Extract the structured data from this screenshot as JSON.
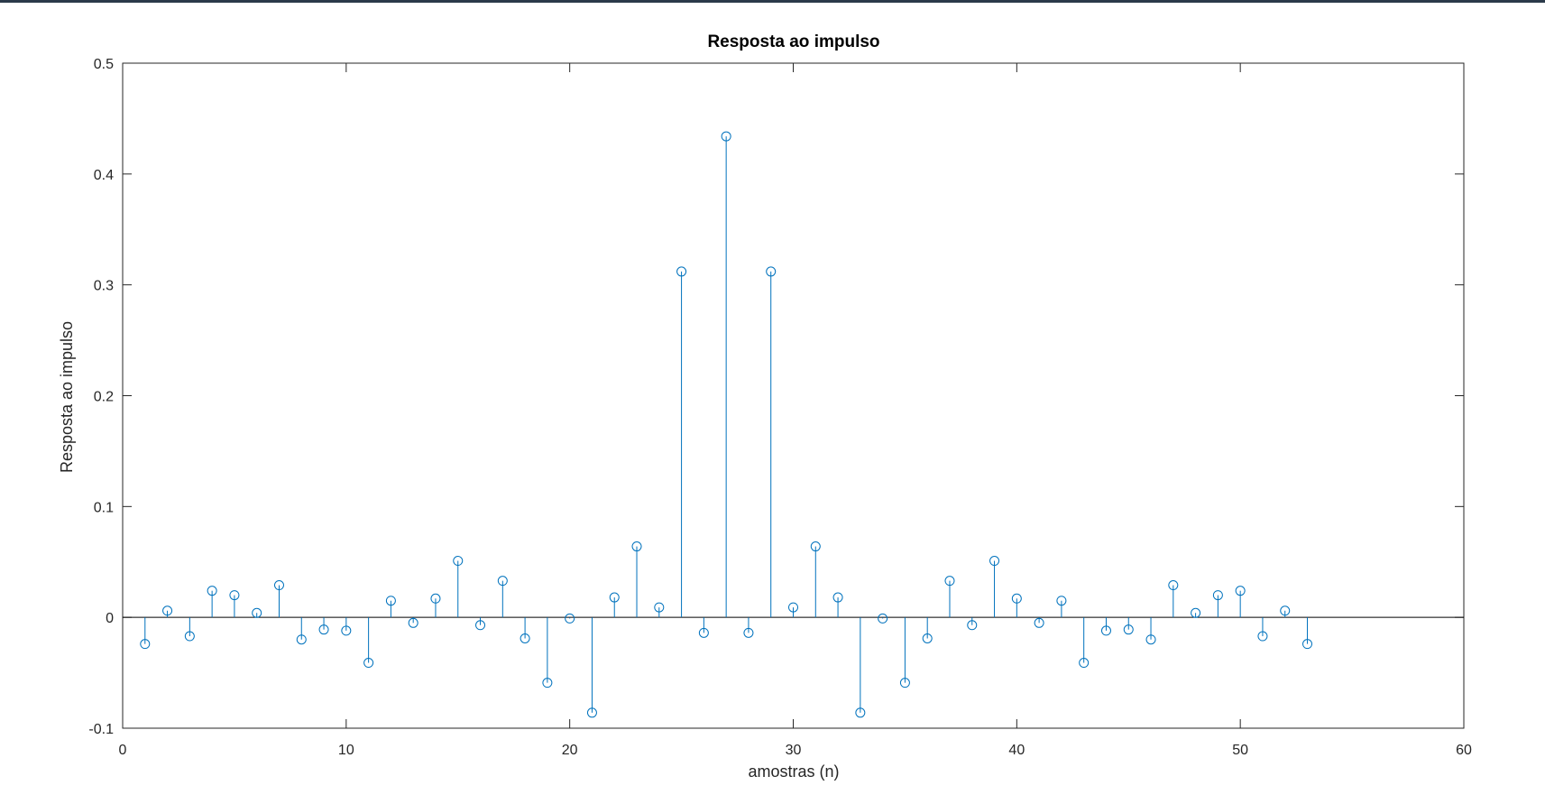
{
  "chart_data": {
    "type": "stem",
    "title": "Resposta ao impulso",
    "xlabel": "amostras (n)",
    "ylabel": "Resposta ao impulso",
    "xlim": [
      0,
      60
    ],
    "ylim": [
      -0.1,
      0.5
    ],
    "xticks": [
      0,
      10,
      20,
      30,
      40,
      50,
      60
    ],
    "yticks": [
      -0.1,
      0,
      0.1,
      0.2,
      0.3,
      0.4,
      0.5
    ],
    "xtick_labels": [
      "0",
      "10",
      "20",
      "30",
      "40",
      "50",
      "60"
    ],
    "ytick_labels": [
      "-0.1",
      "0",
      "0.1",
      "0.2",
      "0.3",
      "0.4",
      "0.5"
    ],
    "grid": false,
    "series_color": "#0072bd",
    "x": [
      1,
      2,
      3,
      4,
      5,
      6,
      7,
      8,
      9,
      10,
      11,
      12,
      13,
      14,
      15,
      16,
      17,
      18,
      19,
      20,
      21,
      22,
      23,
      24,
      25,
      26,
      27,
      28,
      29,
      30,
      31,
      32,
      33,
      34,
      35,
      36,
      37,
      38,
      39,
      40,
      41,
      42,
      43,
      44,
      45,
      46,
      47,
      48,
      49,
      50,
      51,
      52,
      53
    ],
    "y": [
      -0.024,
      0.006,
      -0.017,
      0.024,
      0.02,
      0.004,
      0.029,
      -0.02,
      -0.011,
      -0.012,
      -0.041,
      0.015,
      -0.005,
      0.017,
      0.051,
      -0.007,
      0.033,
      -0.019,
      -0.059,
      -0.001,
      -0.086,
      0.018,
      0.064,
      0.009,
      0.312,
      -0.014,
      0.434,
      -0.014,
      0.312,
      0.009,
      0.064,
      0.018,
      -0.086,
      -0.001,
      -0.059,
      -0.019,
      0.033,
      -0.007,
      0.051,
      0.017,
      -0.005,
      0.015,
      -0.041,
      -0.012,
      -0.011,
      -0.02,
      0.029,
      0.004,
      0.02,
      0.024,
      -0.017,
      0.006,
      -0.024
    ]
  }
}
